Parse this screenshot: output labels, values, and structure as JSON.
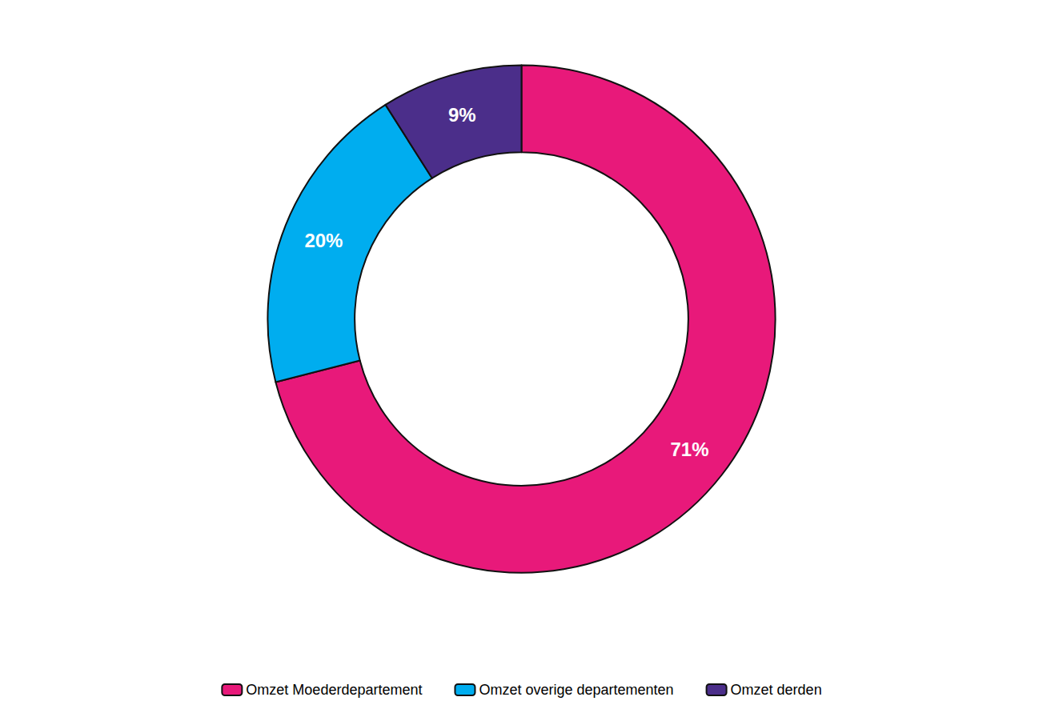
{
  "chart_data": {
    "type": "pie",
    "categories": [
      "Omzet Moederdepartement",
      "Omzet overige departementen",
      "Omzet derden"
    ],
    "values": [
      71,
      20,
      9
    ],
    "value_labels": [
      "71%",
      "20%",
      "9%"
    ],
    "colors": [
      "#E8197A",
      "#00ADEF",
      "#4B2E8A"
    ],
    "data_labels": true,
    "legend": "bottom"
  }
}
